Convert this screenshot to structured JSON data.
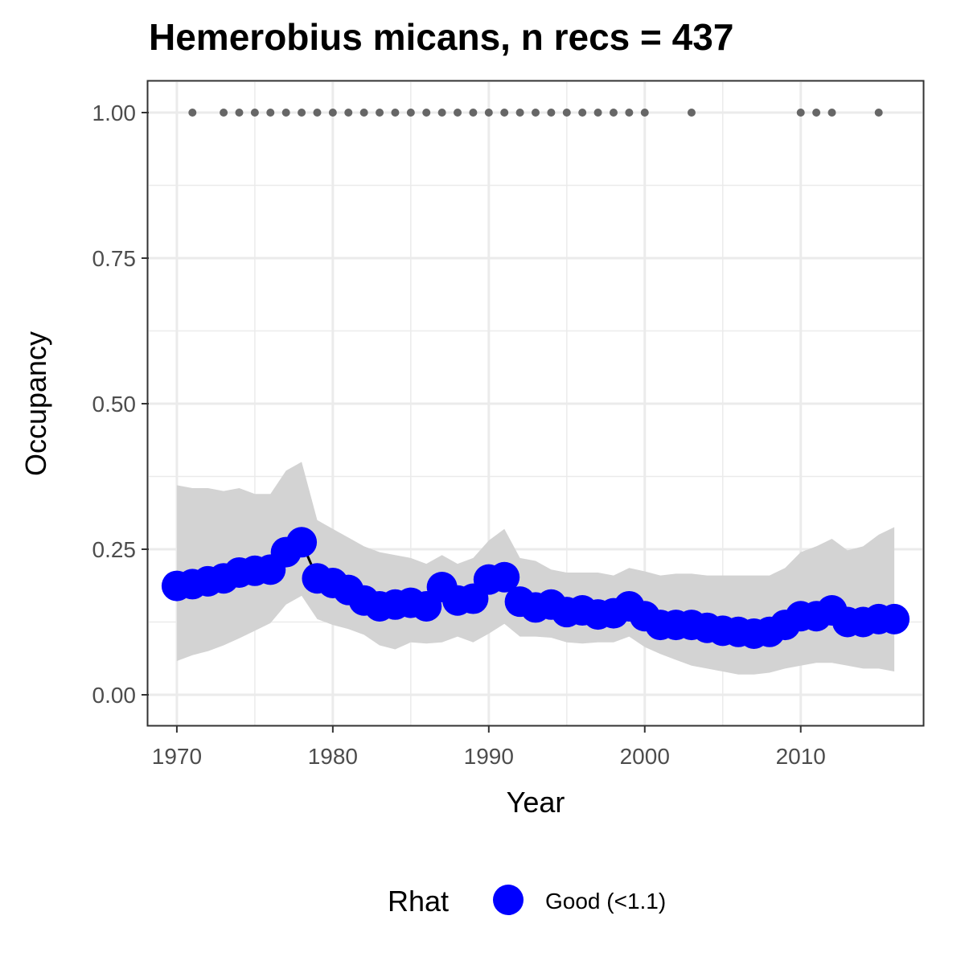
{
  "chart_data": {
    "type": "line",
    "title": "Hemerobius micans, n recs = 437",
    "xlabel": "Year",
    "ylabel": "Occupancy",
    "xlim": [
      1968.2,
      2017.8
    ],
    "ylim": [
      -0.0525,
      1.0525
    ],
    "x_ticks": [
      1970,
      1980,
      1990,
      2000,
      2010
    ],
    "x_tick_labels": [
      "1970",
      "1980",
      "1990",
      "2000",
      "2010"
    ],
    "y_ticks": [
      0,
      0.25,
      0.5,
      0.75,
      1.0
    ],
    "y_tick_labels": [
      "0.00",
      "0.25",
      "0.50",
      "0.75",
      "1.00"
    ],
    "grid": true,
    "legend": {
      "position": "bottom",
      "title": "Rhat",
      "entries": [
        "Good (<1.1)"
      ]
    },
    "colors": {
      "points": "#0000ff",
      "ribbon": "#d3d3d3",
      "records": "#666666",
      "line": "#000000",
      "grid": "#ebebeb",
      "border": "#333333"
    },
    "series": [
      {
        "years": [
          1970,
          1971,
          1972,
          1973,
          1974,
          1975,
          1976,
          1977,
          1978,
          1979,
          1980,
          1981,
          1982,
          1983,
          1984,
          1985,
          1986,
          1987,
          1988,
          1989,
          1990,
          1991,
          1992,
          1993,
          1994,
          1995,
          1996,
          1997,
          1998,
          1999,
          2000,
          2001,
          2002,
          2003,
          2004,
          2005,
          2006,
          2007,
          2008,
          2009,
          2010,
          2011,
          2012,
          2013,
          2014,
          2015,
          2016
        ],
        "mean": [
          0.187,
          0.19,
          0.195,
          0.2,
          0.21,
          0.213,
          0.215,
          0.245,
          0.262,
          0.2,
          0.192,
          0.18,
          0.162,
          0.152,
          0.155,
          0.158,
          0.152,
          0.185,
          0.162,
          0.165,
          0.198,
          0.202,
          0.16,
          0.15,
          0.155,
          0.142,
          0.145,
          0.138,
          0.14,
          0.152,
          0.135,
          0.12,
          0.12,
          0.12,
          0.115,
          0.11,
          0.108,
          0.105,
          0.108,
          0.12,
          0.135,
          0.135,
          0.145,
          0.125,
          0.125,
          0.13,
          0.13
        ],
        "lower": [
          0.058,
          0.068,
          0.075,
          0.085,
          0.097,
          0.11,
          0.123,
          0.155,
          0.17,
          0.13,
          0.12,
          0.113,
          0.103,
          0.085,
          0.078,
          0.09,
          0.088,
          0.09,
          0.1,
          0.09,
          0.105,
          0.122,
          0.1,
          0.1,
          0.098,
          0.09,
          0.088,
          0.09,
          0.09,
          0.1,
          0.082,
          0.07,
          0.06,
          0.05,
          0.045,
          0.04,
          0.035,
          0.035,
          0.038,
          0.045,
          0.05,
          0.055,
          0.055,
          0.05,
          0.045,
          0.045,
          0.04
        ],
        "upper": [
          0.36,
          0.355,
          0.355,
          0.35,
          0.355,
          0.345,
          0.345,
          0.385,
          0.4,
          0.3,
          0.285,
          0.27,
          0.255,
          0.245,
          0.24,
          0.235,
          0.225,
          0.24,
          0.225,
          0.235,
          0.265,
          0.285,
          0.235,
          0.23,
          0.215,
          0.21,
          0.21,
          0.21,
          0.205,
          0.218,
          0.212,
          0.205,
          0.208,
          0.208,
          0.205,
          0.205,
          0.205,
          0.205,
          0.205,
          0.218,
          0.245,
          0.255,
          0.268,
          0.248,
          0.255,
          0.275,
          0.288
        ]
      }
    ],
    "records_y": 1.0,
    "records_years": [
      1971,
      1973,
      1974,
      1975,
      1976,
      1977,
      1978,
      1979,
      1980,
      1981,
      1982,
      1983,
      1984,
      1985,
      1986,
      1987,
      1988,
      1989,
      1990,
      1991,
      1992,
      1993,
      1994,
      1995,
      1996,
      1997,
      1998,
      1999,
      2000,
      2003,
      2010,
      2011,
      2012,
      2015
    ]
  }
}
